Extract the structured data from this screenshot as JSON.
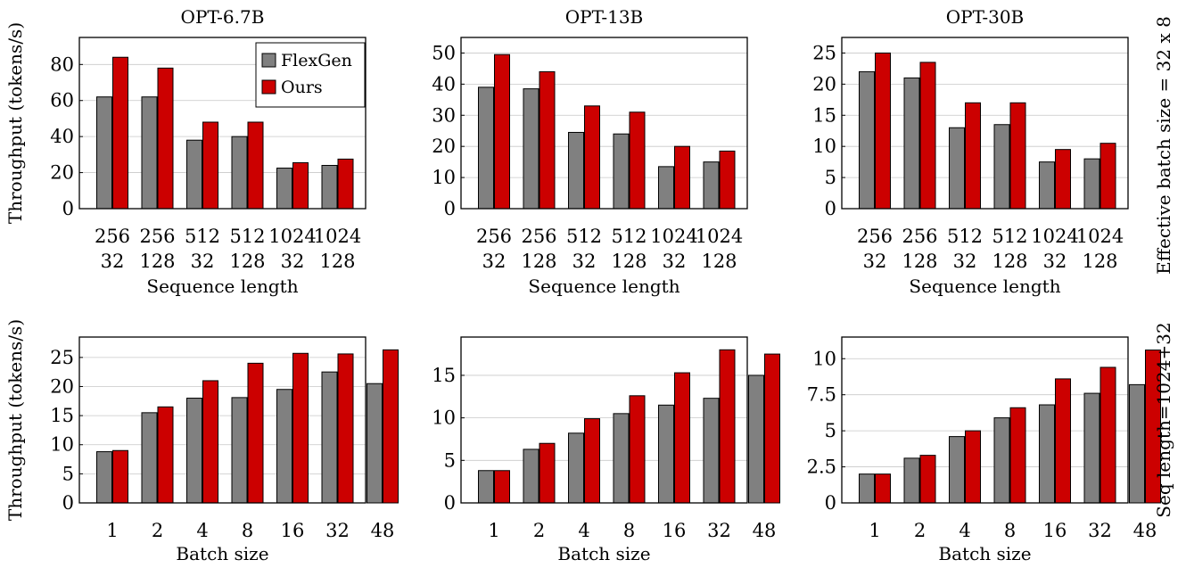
{
  "colors": {
    "flexgen": "#808080",
    "ours": "#cc0000",
    "grid": "#c8c8c8"
  },
  "row_labels": [
    "Effective batch size = 32 x 8",
    "Seq length=1024+32"
  ],
  "chart_data": [
    {
      "type": "bar",
      "title": "OPT-6.7B",
      "xlabel": "Sequence length",
      "ylabel": "Throughput (tokens/s)",
      "categories": [
        [
          "256",
          "32"
        ],
        [
          "256",
          "128"
        ],
        [
          "512",
          "32"
        ],
        [
          "512",
          "128"
        ],
        [
          "1024",
          "32"
        ],
        [
          "1024",
          "128"
        ]
      ],
      "series": [
        {
          "name": "FlexGen",
          "values": [
            62,
            62,
            38,
            40,
            22.5,
            24
          ]
        },
        {
          "name": "Ours",
          "values": [
            84,
            78,
            48,
            48,
            25.5,
            27.5
          ]
        }
      ],
      "ylim": [
        0,
        95
      ],
      "yticks": [
        0,
        20,
        40,
        60,
        80
      ],
      "ytick_labels": [
        "0",
        "20",
        "40",
        "60",
        "80"
      ],
      "grid": true,
      "legend": "top-right"
    },
    {
      "type": "bar",
      "title": "OPT-13B",
      "xlabel": "Sequence length",
      "ylabel": "",
      "categories": [
        [
          "256",
          "32"
        ],
        [
          "256",
          "128"
        ],
        [
          "512",
          "32"
        ],
        [
          "512",
          "128"
        ],
        [
          "1024",
          "32"
        ],
        [
          "1024",
          "128"
        ]
      ],
      "series": [
        {
          "name": "FlexGen",
          "values": [
            39,
            38.5,
            24.5,
            24,
            13.5,
            15
          ]
        },
        {
          "name": "Ours",
          "values": [
            49.5,
            44,
            33,
            31,
            20,
            18.5
          ]
        }
      ],
      "ylim": [
        0,
        55
      ],
      "yticks": [
        0,
        10,
        20,
        30,
        40,
        50
      ],
      "ytick_labels": [
        "0",
        "10",
        "20",
        "30",
        "40",
        "50"
      ],
      "grid": true
    },
    {
      "type": "bar",
      "title": "OPT-30B",
      "xlabel": "Sequence length",
      "ylabel": "",
      "categories": [
        [
          "256",
          "32"
        ],
        [
          "256",
          "128"
        ],
        [
          "512",
          "32"
        ],
        [
          "512",
          "128"
        ],
        [
          "1024",
          "32"
        ],
        [
          "1024",
          "128"
        ]
      ],
      "series": [
        {
          "name": "FlexGen",
          "values": [
            22,
            21,
            13,
            13.5,
            7.5,
            8
          ]
        },
        {
          "name": "Ours",
          "values": [
            25,
            23.5,
            17,
            17,
            9.5,
            10.5
          ]
        }
      ],
      "ylim": [
        0,
        27.5
      ],
      "yticks": [
        0,
        5,
        10,
        15,
        20,
        25
      ],
      "ytick_labels": [
        "0",
        "5",
        "10",
        "15",
        "20",
        "25"
      ],
      "grid": true
    },
    {
      "type": "bar",
      "title": "",
      "xlabel": "Batch size",
      "ylabel": "Throughput (tokens/s)",
      "categories": [
        [
          "1"
        ],
        [
          "2"
        ],
        [
          "4"
        ],
        [
          "8"
        ],
        [
          "16"
        ],
        [
          "32"
        ],
        [
          "48"
        ]
      ],
      "series": [
        {
          "name": "FlexGen",
          "values": [
            8.8,
            15.5,
            18,
            18.1,
            19.5,
            22.5,
            20.5
          ]
        },
        {
          "name": "Ours",
          "values": [
            9,
            16.5,
            21,
            24,
            25.7,
            25.6,
            26.3
          ]
        }
      ],
      "ylim": [
        0,
        28.5
      ],
      "yticks": [
        0,
        5,
        10,
        15,
        20,
        25
      ],
      "ytick_labels": [
        "0",
        "5",
        "10",
        "15",
        "20",
        "25"
      ],
      "grid": true
    },
    {
      "type": "bar",
      "title": "",
      "xlabel": "Batch size",
      "ylabel": "",
      "categories": [
        [
          "1"
        ],
        [
          "2"
        ],
        [
          "4"
        ],
        [
          "8"
        ],
        [
          "16"
        ],
        [
          "32"
        ],
        [
          "48"
        ]
      ],
      "series": [
        {
          "name": "FlexGen",
          "values": [
            3.8,
            6.3,
            8.2,
            10.5,
            11.5,
            12.3,
            15
          ]
        },
        {
          "name": "Ours",
          "values": [
            3.8,
            7,
            9.9,
            12.6,
            15.3,
            18,
            17.5
          ]
        }
      ],
      "ylim": [
        0,
        19.5
      ],
      "yticks": [
        0,
        5,
        10,
        15
      ],
      "ytick_labels": [
        "0",
        "5",
        "10",
        "15"
      ],
      "grid": true
    },
    {
      "type": "bar",
      "title": "",
      "xlabel": "Batch size",
      "ylabel": "",
      "categories": [
        [
          "1"
        ],
        [
          "2"
        ],
        [
          "4"
        ],
        [
          "8"
        ],
        [
          "16"
        ],
        [
          "32"
        ],
        [
          "48"
        ]
      ],
      "series": [
        {
          "name": "FlexGen",
          "values": [
            2,
            3.1,
            4.6,
            5.9,
            6.8,
            7.6,
            8.2
          ]
        },
        {
          "name": "Ours",
          "values": [
            2,
            3.3,
            5,
            6.6,
            8.6,
            9.4,
            10.6
          ]
        }
      ],
      "ylim": [
        0,
        11.5
      ],
      "yticks": [
        0,
        2.5,
        5,
        7.5,
        10
      ],
      "ytick_labels": [
        "0",
        "2.5",
        "5",
        "7.5",
        "10"
      ],
      "grid": true
    }
  ]
}
